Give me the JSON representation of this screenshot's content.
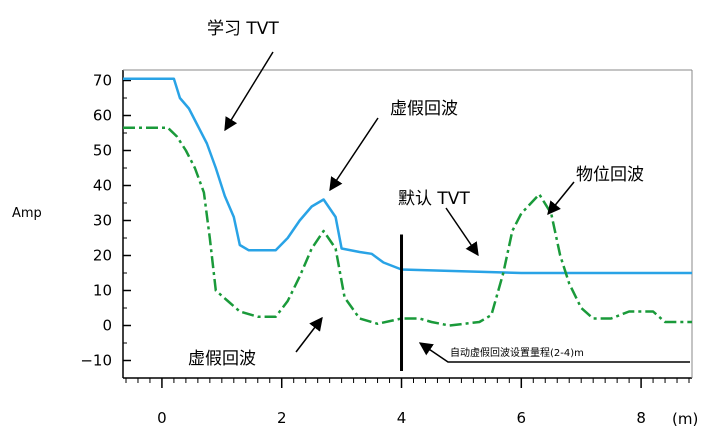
{
  "chart_data": {
    "type": "line",
    "title": "",
    "xlabel": "",
    "ylabel": "Amp",
    "x_unit_label": "(m)",
    "xlim": [
      -0.65,
      8.85
    ],
    "ylim": [
      -15,
      73
    ],
    "x_ticks": [
      0,
      2,
      4,
      6,
      8
    ],
    "y_ticks": [
      70,
      60,
      50,
      40,
      30,
      20,
      10,
      0,
      -10
    ],
    "x_tick_labels": [
      "0",
      "2",
      "4",
      "6",
      "8"
    ],
    "y_tick_labels": [
      "70",
      "60",
      "50",
      "40",
      "30",
      "20",
      "10",
      "0",
      "−10"
    ],
    "grid": false,
    "series": [
      {
        "key": "learned-tvt",
        "style": "solid",
        "color": "#29a3e6",
        "points": [
          [
            -0.65,
            70.5
          ],
          [
            0.2,
            70.5
          ],
          [
            0.3,
            65
          ],
          [
            0.45,
            62
          ],
          [
            0.6,
            57
          ],
          [
            0.75,
            52
          ],
          [
            0.9,
            45
          ],
          [
            1.05,
            37
          ],
          [
            1.2,
            31
          ],
          [
            1.3,
            23
          ],
          [
            1.45,
            21.5
          ],
          [
            1.9,
            21.5
          ],
          [
            2.1,
            25
          ],
          [
            2.3,
            30
          ],
          [
            2.5,
            34
          ],
          [
            2.7,
            36
          ],
          [
            2.9,
            31
          ],
          [
            3.0,
            22
          ],
          [
            3.3,
            21
          ],
          [
            3.5,
            20.5
          ],
          [
            3.7,
            18
          ],
          [
            4.0,
            16
          ],
          [
            5.0,
            15.5
          ],
          [
            6.0,
            15
          ],
          [
            8.85,
            15
          ]
        ]
      },
      {
        "key": "echo-profile",
        "style": "dashdot",
        "color": "#1a9a3a",
        "points": [
          [
            -0.65,
            56.5
          ],
          [
            0.1,
            56.5
          ],
          [
            0.25,
            54
          ],
          [
            0.4,
            50
          ],
          [
            0.55,
            45
          ],
          [
            0.7,
            38
          ],
          [
            0.8,
            25
          ],
          [
            0.9,
            10
          ],
          [
            1.1,
            7
          ],
          [
            1.3,
            4
          ],
          [
            1.6,
            2.5
          ],
          [
            1.9,
            2.5
          ],
          [
            2.1,
            7
          ],
          [
            2.3,
            14
          ],
          [
            2.5,
            22
          ],
          [
            2.7,
            27
          ],
          [
            2.9,
            22
          ],
          [
            3.05,
            8
          ],
          [
            3.3,
            2
          ],
          [
            3.6,
            0.5
          ],
          [
            4.0,
            2
          ],
          [
            4.3,
            2
          ],
          [
            4.5,
            1
          ],
          [
            4.8,
            0
          ],
          [
            5.3,
            1
          ],
          [
            5.5,
            3
          ],
          [
            5.7,
            15
          ],
          [
            5.85,
            27
          ],
          [
            6.0,
            32
          ],
          [
            6.3,
            37.5
          ],
          [
            6.5,
            32
          ],
          [
            6.65,
            20
          ],
          [
            6.8,
            12
          ],
          [
            7.0,
            5
          ],
          [
            7.2,
            2
          ],
          [
            7.5,
            2
          ],
          [
            7.8,
            4
          ],
          [
            8.2,
            4
          ],
          [
            8.4,
            1
          ],
          [
            8.85,
            1
          ]
        ]
      }
    ],
    "vertical_marker": {
      "x": 4.0,
      "y_top": 26,
      "y_bottom": -13
    },
    "annotations": {
      "learned_tvt": "学习 TVT",
      "false_echo_top": "虚假回波",
      "false_echo_bottom": "虚假回波",
      "default_tvt": "默认 TVT",
      "material_echo": "物位回波",
      "auto_range_note": "自动虚假回波设置量程(2-4)m"
    }
  }
}
